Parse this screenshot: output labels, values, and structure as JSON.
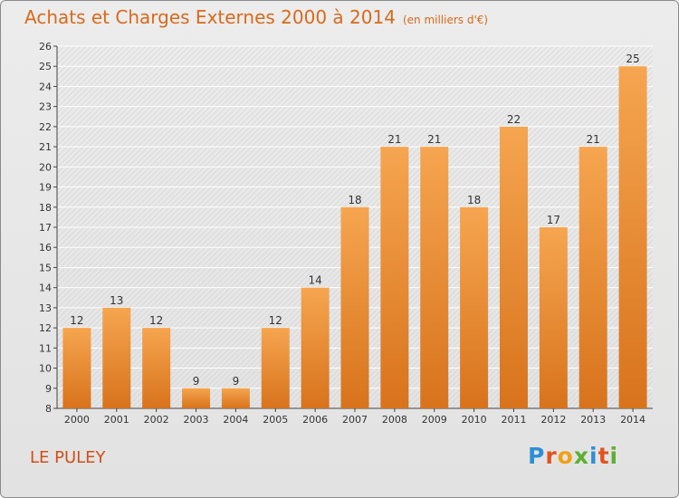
{
  "header": {
    "title": "Achats et Charges Externes 2000 à 2014",
    "subtitle": "(en milliers d'€)"
  },
  "footer": {
    "location": "LE PULEY",
    "logo_text": "Proxiti"
  },
  "colors": {
    "title": "#d96a1c",
    "bar_top": "#f6a550",
    "bar_bottom": "#d8731c",
    "location": "#d04f18"
  },
  "chart_data": {
    "type": "bar",
    "title": "Achats et Charges Externes 2000 à 2014",
    "subtitle": "(en milliers d'€)",
    "xlabel": "",
    "ylabel": "",
    "categories": [
      "2000",
      "2001",
      "2002",
      "2003",
      "2004",
      "2005",
      "2006",
      "2007",
      "2008",
      "2009",
      "2010",
      "2011",
      "2012",
      "2013",
      "2014"
    ],
    "values": [
      12,
      13,
      12,
      9,
      9,
      12,
      14,
      18,
      21,
      21,
      18,
      22,
      17,
      21,
      25
    ],
    "ylim": [
      8,
      26
    ],
    "yticks": [
      8,
      9,
      10,
      11,
      12,
      13,
      14,
      15,
      16,
      17,
      18,
      19,
      20,
      21,
      22,
      23,
      24,
      25,
      26
    ],
    "grid": true,
    "legend": "none"
  }
}
